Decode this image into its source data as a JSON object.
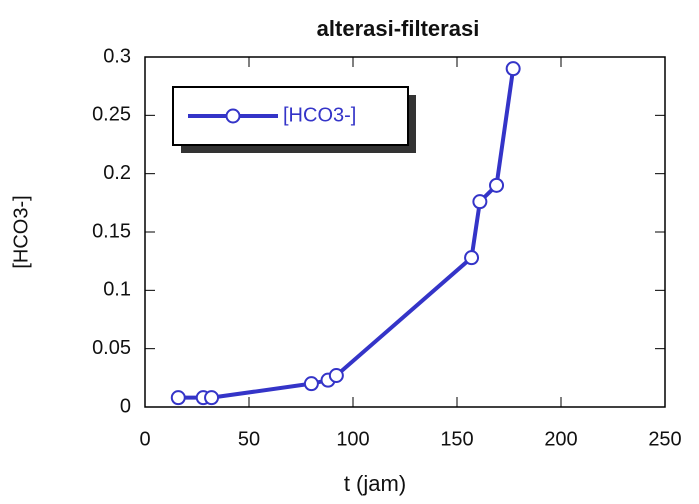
{
  "chart_data": {
    "type": "line",
    "title": "alterasi-filterasi",
    "x_label": "t (jam)",
    "y_label": "[HCO3-]",
    "x": [
      16,
      28,
      32,
      80,
      88,
      92,
      157,
      161,
      169,
      177
    ],
    "series": [
      {
        "name": "[HCO3-]",
        "color": "#3434c8",
        "values": [
          0.008,
          0.008,
          0.008,
          0.02,
          0.023,
          0.027,
          0.128,
          0.176,
          0.19,
          0.29
        ]
      }
    ],
    "xlim": [
      0,
      250
    ],
    "xticks": [
      0,
      50,
      100,
      150,
      200,
      250
    ],
    "ylim": [
      0,
      0.3
    ],
    "yticks": [
      0,
      0.05,
      0.1,
      0.15,
      0.2,
      0.25,
      0.3
    ],
    "legend": "upper left"
  }
}
